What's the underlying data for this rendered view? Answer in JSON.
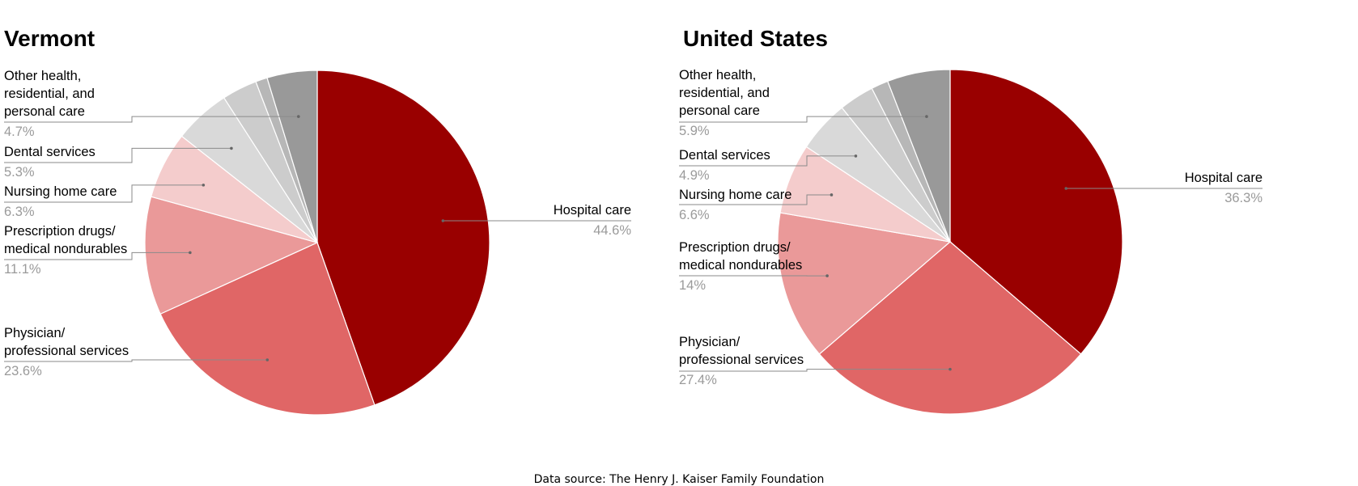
{
  "chart_data": [
    {
      "type": "pie",
      "title": "Vermont",
      "start_angle_deg": 0,
      "slices": [
        {
          "name": "Hospital care",
          "display": "Hospital care",
          "value": 44.6,
          "label": "44.6%",
          "color": "#990000"
        },
        {
          "name": "Physician/ professional services",
          "display": "Physician/\nprofessional services",
          "value": 23.6,
          "label": "23.6%",
          "color": "#e06666"
        },
        {
          "name": "Prescription drugs/ medical nondurables",
          "display": "Prescription drugs/\nmedical nondurables",
          "value": 11.1,
          "label": "11.1%",
          "color": "#ea9999"
        },
        {
          "name": "Nursing home care",
          "display": "Nursing home care",
          "value": 6.3,
          "label": "6.3%",
          "color": "#f4cccc"
        },
        {
          "name": "Dental services",
          "display": "Dental services",
          "value": 5.3,
          "label": "5.3%",
          "color": "#d9d9d9"
        },
        {
          "name": "",
          "display": "",
          "value": 3.3,
          "label": "",
          "color": "#cccccc"
        },
        {
          "name": "",
          "display": "",
          "value": 1.1,
          "label": "",
          "color": "#b7b7b7"
        },
        {
          "name": "Other health, residential, and personal care",
          "display": "Other health,\nresidential, and\npersonal care",
          "value": 4.7,
          "label": "4.7%",
          "color": "#999999"
        }
      ]
    },
    {
      "type": "pie",
      "title": "United States",
      "start_angle_deg": 0,
      "slices": [
        {
          "name": "Hospital care",
          "display": "Hospital care",
          "value": 36.3,
          "label": "36.3%",
          "color": "#990000"
        },
        {
          "name": "Physician/ professional services",
          "display": "Physician/\nprofessional services",
          "value": 27.4,
          "label": "27.4%",
          "color": "#e06666"
        },
        {
          "name": "Prescription drugs/ medical nondurables",
          "display": "Prescription drugs/\nmedical nondurables",
          "value": 14,
          "label": "14%",
          "color": "#ea9999"
        },
        {
          "name": "Nursing home care",
          "display": "Nursing home care",
          "value": 6.6,
          "label": "6.6%",
          "color": "#f4cccc"
        },
        {
          "name": "Dental services",
          "display": "Dental services",
          "value": 4.9,
          "label": "4.9%",
          "color": "#d9d9d9"
        },
        {
          "name": "",
          "display": "",
          "value": 3.3,
          "label": "",
          "color": "#cccccc"
        },
        {
          "name": "",
          "display": "",
          "value": 1.6,
          "label": "",
          "color": "#b7b7b7"
        },
        {
          "name": "Other health, residential, and personal care",
          "display": "Other health,\nresidential, and\npersonal care",
          "value": 5.9,
          "label": "5.9%",
          "color": "#999999"
        }
      ]
    }
  ],
  "source": "Data source: The Henry J. Kaiser Family Foundation"
}
